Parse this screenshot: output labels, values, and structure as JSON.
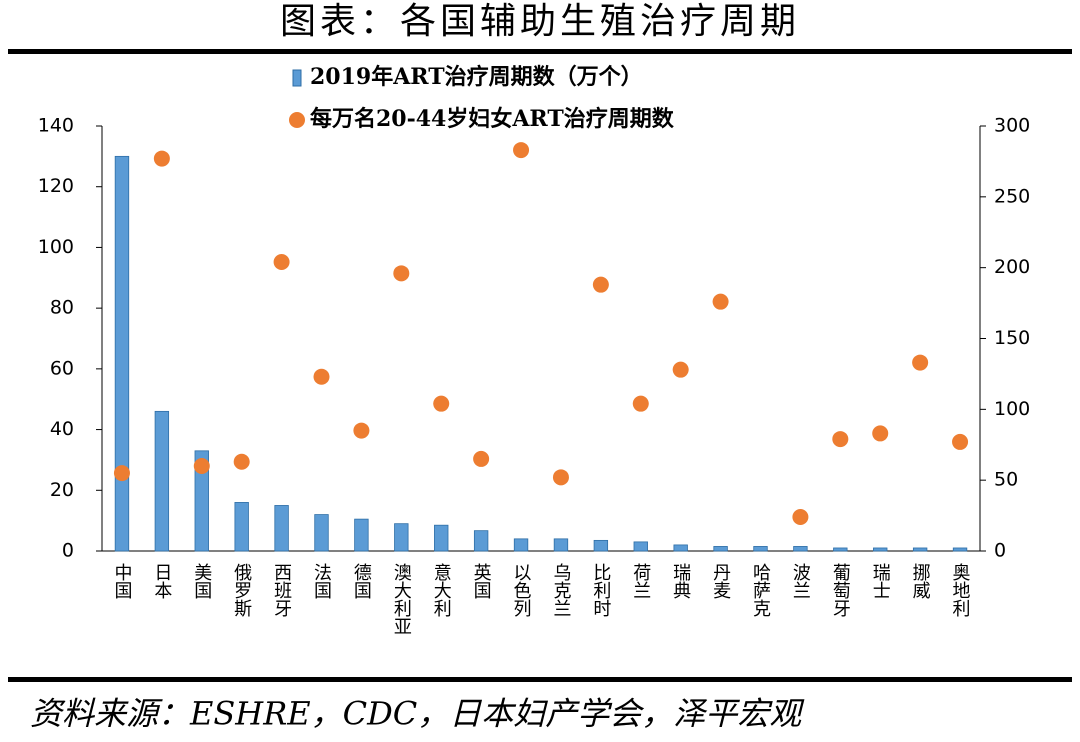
{
  "title": "图表：各国辅助生殖治疗周期",
  "chart_data": {
    "type": "bar",
    "categories": [
      "中国",
      "日本",
      "美国",
      "俄罗斯",
      "西班牙",
      "法国",
      "德国",
      "澳大利亚",
      "意大利",
      "英国",
      "以色列",
      "乌克兰",
      "比利时",
      "荷兰",
      "瑞典",
      "丹麦",
      "哈萨克",
      "波兰",
      "葡萄牙",
      "瑞士",
      "挪威",
      "奥地利"
    ],
    "series": [
      {
        "name": "2019年ART治疗周期数（万个）",
        "type": "bar",
        "color": "#5b9bd5",
        "values": [
          130,
          46,
          33,
          16,
          15,
          12,
          10.5,
          9,
          8.5,
          6.7,
          4,
          4,
          3.5,
          3,
          2,
          1.5,
          1.5,
          1.5,
          1,
          1,
          1,
          1
        ]
      },
      {
        "name": "每万名20-44岁妇女ART治疗周期数",
        "type": "scatter",
        "axis": "y2",
        "color": "#ed7d31",
        "values": [
          55,
          277,
          60,
          63,
          204,
          123,
          85,
          196,
          104,
          65,
          283,
          52,
          188,
          104,
          128,
          176,
          null,
          24,
          79,
          83,
          133,
          77
        ]
      }
    ],
    "ylim": [
      0,
      140
    ],
    "yticks": [
      0,
      20,
      40,
      60,
      80,
      100,
      120,
      140
    ],
    "y2lim": [
      0,
      300
    ],
    "y2ticks": [
      0,
      50,
      100,
      150,
      200,
      250,
      300
    ],
    "grid": false
  },
  "source": "资料来源：ESHRE，CDC，日本妇产学会，泽平宏观"
}
